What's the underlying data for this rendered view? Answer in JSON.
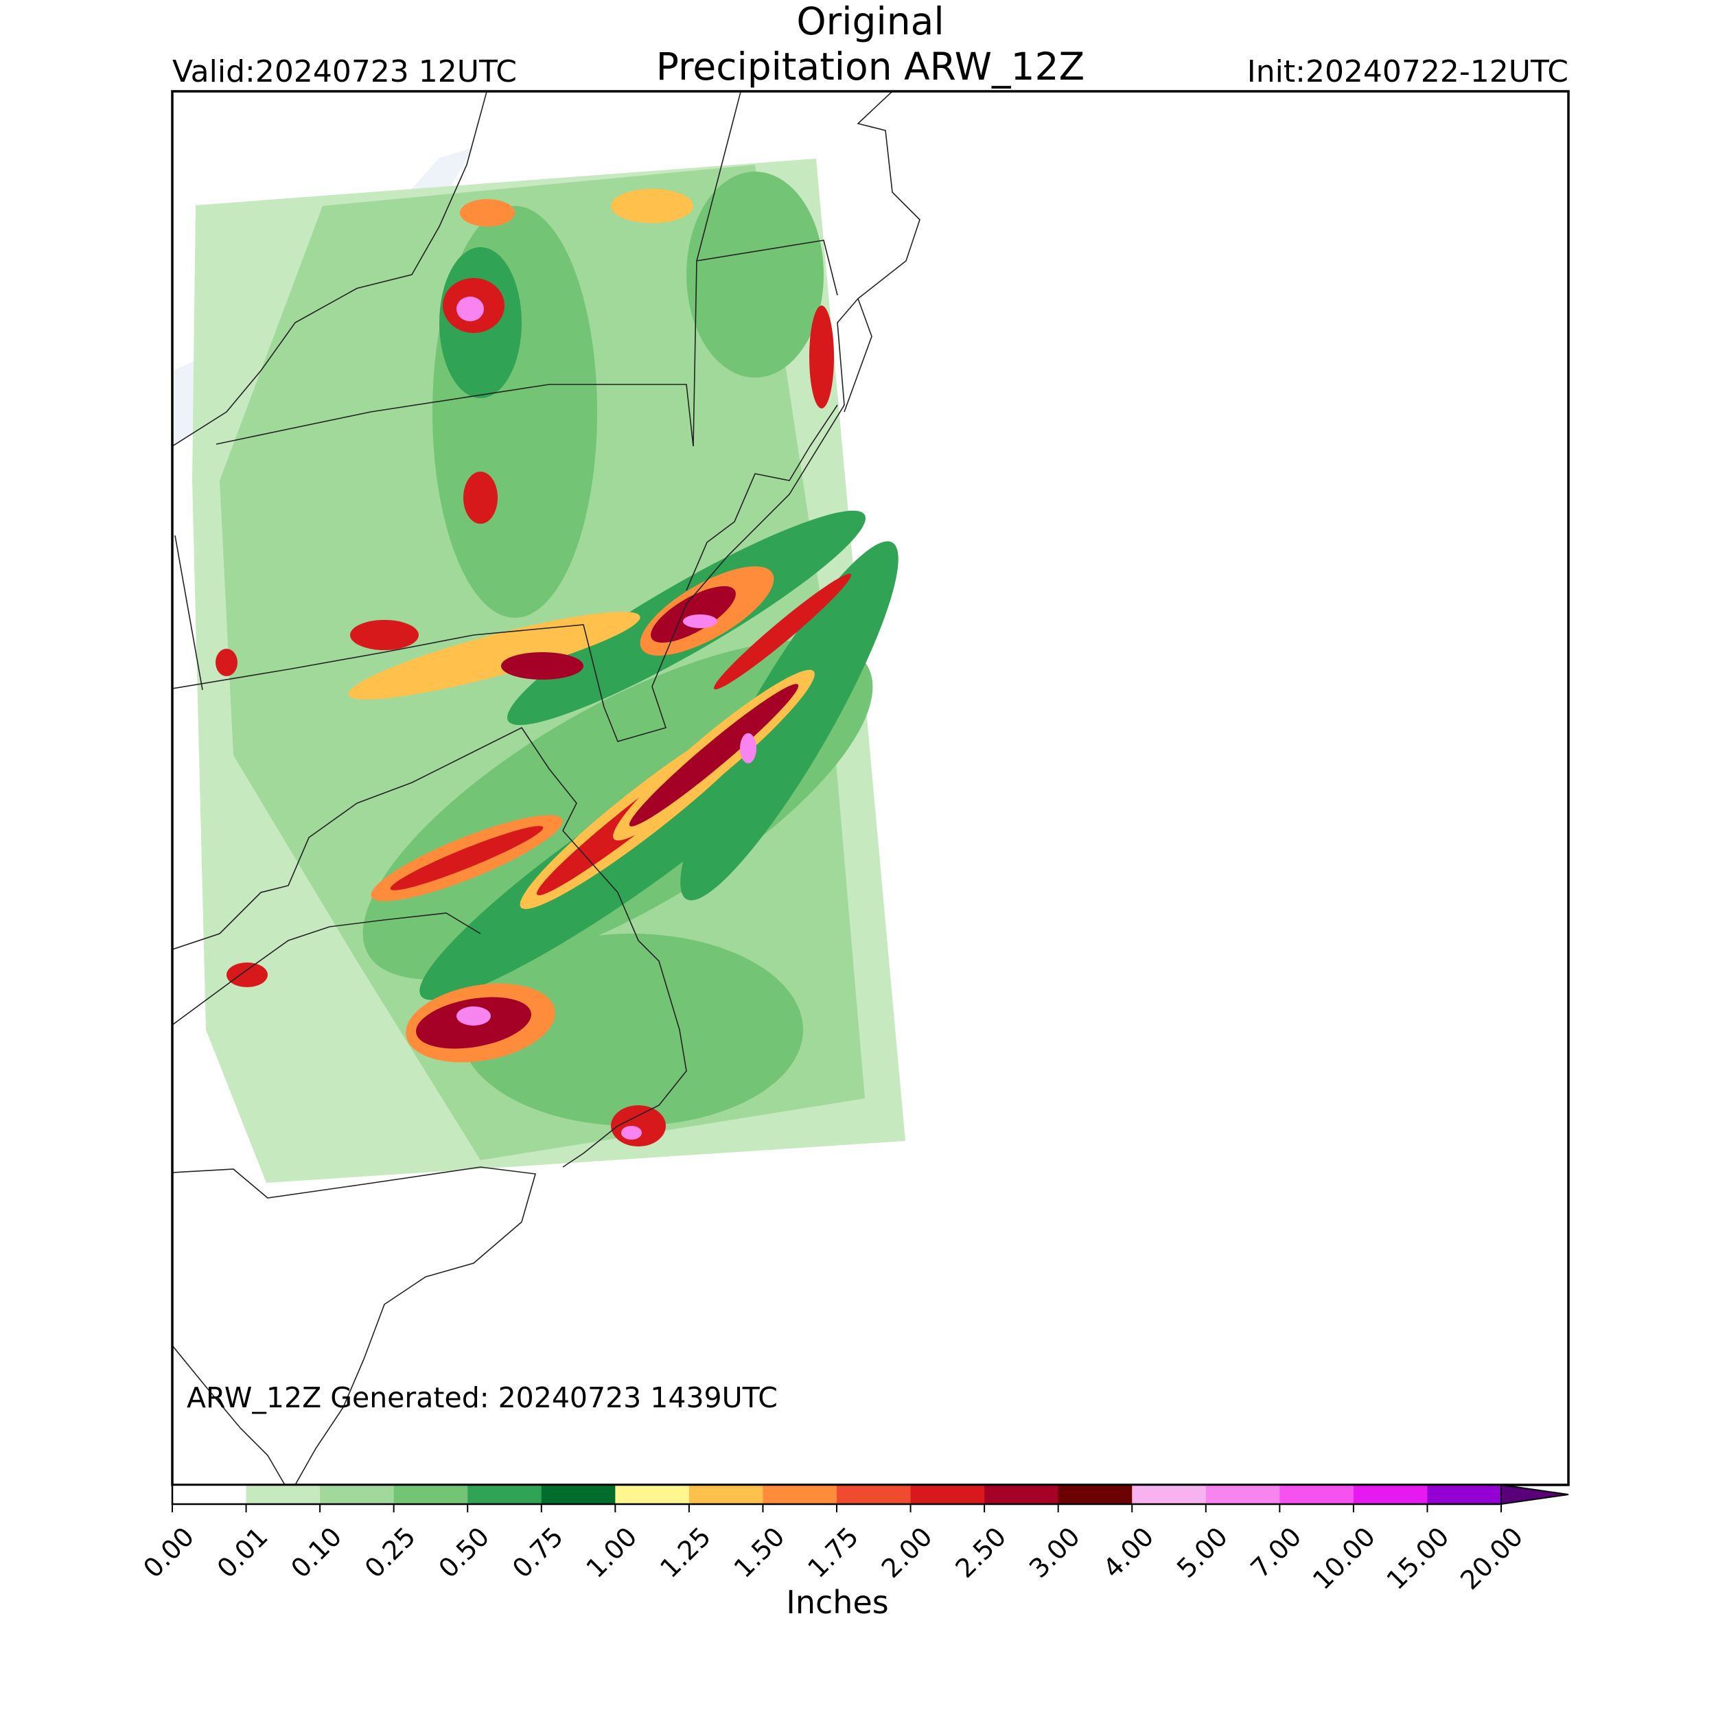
{
  "header": {
    "title": "Original",
    "subtitle": "Precipitation ARW_12Z",
    "valid": "Valid:20240723 12UTC",
    "init": "Init:20240722-12UTC"
  },
  "map": {
    "annotation": "ARW_12Z Generated: 20240723 1439UTC"
  },
  "colorbar": {
    "label": "Inches",
    "ticks": [
      {
        "value": 0,
        "label": "0.00"
      },
      {
        "value": 0.01,
        "label": "0.01"
      },
      {
        "value": 0.1,
        "label": "0.10"
      },
      {
        "value": 0.25,
        "label": "0.25"
      },
      {
        "value": 0.5,
        "label": "0.50"
      },
      {
        "value": 0.75,
        "label": "0.75"
      },
      {
        "value": 1,
        "label": "1.00"
      },
      {
        "value": 1.25,
        "label": "1.25"
      },
      {
        "value": 1.5,
        "label": "1.50"
      },
      {
        "value": 1.75,
        "label": "1.75"
      },
      {
        "value": 2,
        "label": "2.00"
      },
      {
        "value": 2.5,
        "label": "2.50"
      },
      {
        "value": 3,
        "label": "3.00"
      },
      {
        "value": 4,
        "label": "4.00"
      },
      {
        "value": 5,
        "label": "5.00"
      },
      {
        "value": 7,
        "label": "7.00"
      },
      {
        "value": 10,
        "label": "10.00"
      },
      {
        "value": 15,
        "label": "15.00"
      },
      {
        "value": 20,
        "label": "20.00"
      }
    ],
    "colors": [
      "#ffffff",
      "#c7e9c0",
      "#a1d99b",
      "#74c476",
      "#31a354",
      "#006d2c",
      "#fff68f",
      "#ffc04c",
      "#ff8c3a",
      "#f04a2f",
      "#d7191c",
      "#a50026",
      "#6b0000",
      "#f7b2f0",
      "#f884f0",
      "#f552f0",
      "#e619f0",
      "#9400d3"
    ],
    "extend_color": "#5a007a"
  }
}
